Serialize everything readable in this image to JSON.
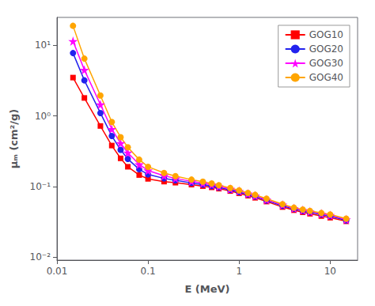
{
  "chart_data": {
    "type": "line",
    "xlabel": "E (MeV)",
    "ylabel": "μₘ (cm²/g)",
    "x": [
      0.015,
      0.02,
      0.03,
      0.04,
      0.05,
      0.06,
      0.08,
      0.1,
      0.15,
      0.2,
      0.3,
      0.4,
      0.5,
      0.6,
      0.8,
      1.0,
      1.25,
      1.5,
      2.0,
      3.0,
      4.0,
      5.0,
      6.0,
      8.0,
      10.0,
      15.0
    ],
    "series": [
      {
        "name": "GOG10",
        "color": "red",
        "marker": "square",
        "values": [
          3.5,
          1.8,
          0.72,
          0.38,
          0.25,
          0.19,
          0.145,
          0.128,
          0.117,
          0.113,
          0.106,
          0.101,
          0.097,
          0.093,
          0.086,
          0.08,
          0.074,
          0.069,
          0.061,
          0.051,
          0.046,
          0.043,
          0.041,
          0.038,
          0.036,
          0.032
        ]
      },
      {
        "name": "GOG20",
        "color": "#2222ee",
        "marker": "circle",
        "values": [
          7.8,
          3.2,
          1.1,
          0.52,
          0.33,
          0.245,
          0.175,
          0.148,
          0.13,
          0.122,
          0.112,
          0.106,
          0.101,
          0.097,
          0.089,
          0.083,
          0.077,
          0.072,
          0.063,
          0.053,
          0.048,
          0.045,
          0.043,
          0.04,
          0.038,
          0.033
        ]
      },
      {
        "name": "GOG30",
        "color": "magenta",
        "marker": "star",
        "values": [
          11.5,
          4.5,
          1.45,
          0.65,
          0.41,
          0.3,
          0.205,
          0.168,
          0.142,
          0.13,
          0.118,
          0.111,
          0.106,
          0.1,
          0.092,
          0.086,
          0.079,
          0.074,
          0.065,
          0.055,
          0.049,
          0.046,
          0.044,
          0.041,
          0.039,
          0.034
        ]
      },
      {
        "name": "GOG40",
        "color": "orange",
        "marker": "circle",
        "values": [
          19.0,
          6.5,
          1.95,
          0.82,
          0.5,
          0.36,
          0.24,
          0.19,
          0.155,
          0.14,
          0.125,
          0.117,
          0.11,
          0.104,
          0.095,
          0.088,
          0.081,
          0.076,
          0.067,
          0.056,
          0.05,
          0.047,
          0.045,
          0.042,
          0.04,
          0.035
        ]
      }
    ],
    "log": true,
    "grid": false,
    "legend": "upper right",
    "xlim": [
      0.01,
      20
    ],
    "ylim": [
      0.009,
      25
    ],
    "xticks": [
      0.01,
      0.1,
      1,
      10
    ],
    "yticks": [
      {
        "value": 0.01,
        "label": "10⁻²"
      },
      {
        "value": 0.1,
        "label": "10⁻¹"
      },
      {
        "value": 1,
        "label": "10⁰"
      },
      {
        "value": 10,
        "label": "10¹"
      }
    ]
  }
}
